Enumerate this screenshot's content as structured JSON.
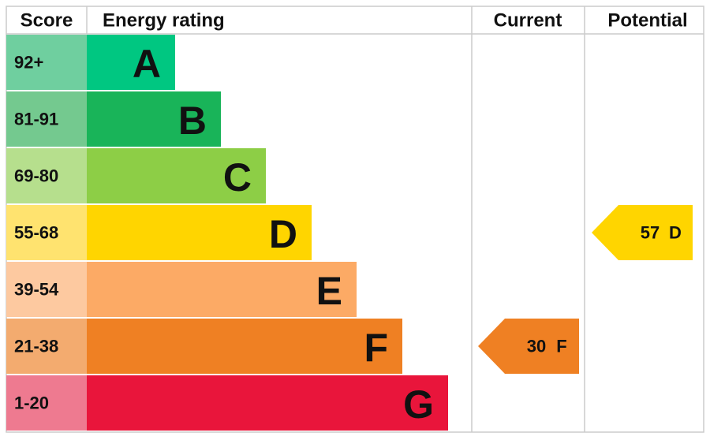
{
  "header": {
    "score": "Score",
    "rating": "Energy rating",
    "current": "Current",
    "potential": "Potential"
  },
  "bands": [
    {
      "score": "92+",
      "letter": "A",
      "color": "#00c781",
      "score_color": "#6fcf9f"
    },
    {
      "score": "81-91",
      "letter": "B",
      "color": "#19b459",
      "score_color": "#74c98f"
    },
    {
      "score": "69-80",
      "letter": "C",
      "color": "#8dce46",
      "score_color": "#b6df8d"
    },
    {
      "score": "55-68",
      "letter": "D",
      "color": "#ffd500",
      "score_color": "#ffe36f"
    },
    {
      "score": "39-54",
      "letter": "E",
      "color": "#fcaa65",
      "score_color": "#fdc9a0"
    },
    {
      "score": "21-38",
      "letter": "F",
      "color": "#ef8023",
      "score_color": "#f3ab6f"
    },
    {
      "score": "1-20",
      "letter": "G",
      "color": "#e9153b",
      "score_color": "#ee7a90"
    }
  ],
  "current": {
    "score": "30",
    "letter": "F",
    "color": "#ef8023"
  },
  "potential": {
    "score": "57",
    "letter": "D",
    "color": "#ffd500"
  }
}
